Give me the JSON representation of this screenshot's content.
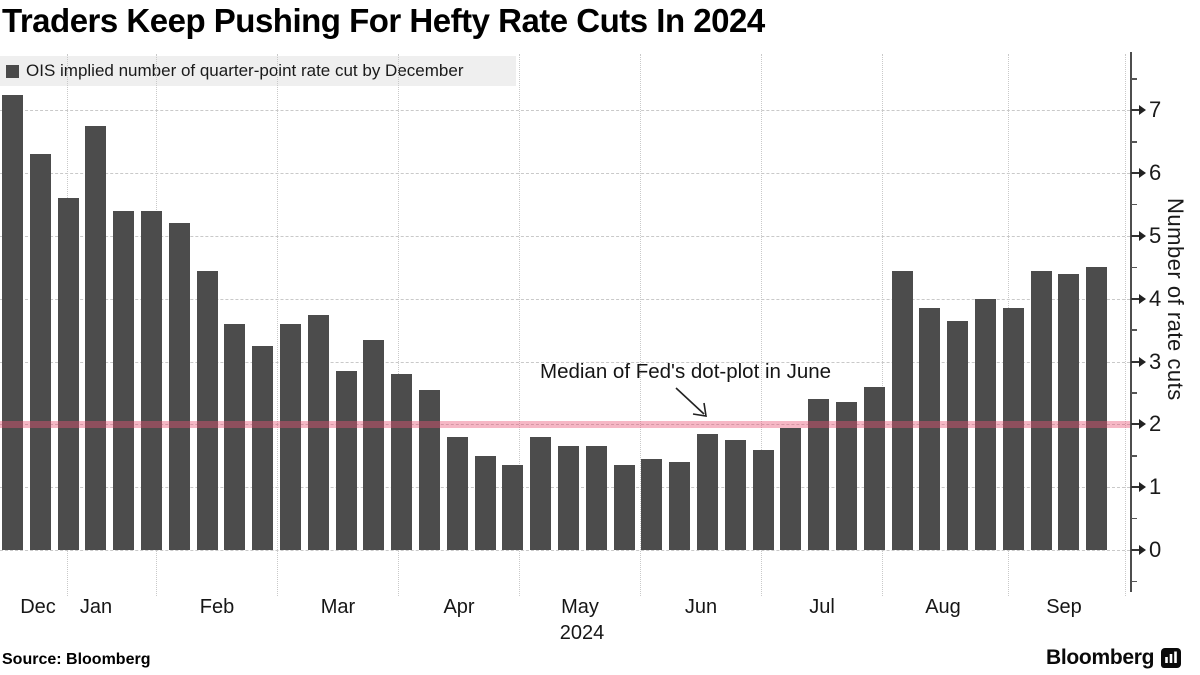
{
  "chart_data": {
    "type": "bar",
    "title": "Traders Keep Pushing For Hefty Rate Cuts In 2024",
    "legend_label": "OIS implied number of quarter-point rate cut by December",
    "ylabel": "Number of rate cuts",
    "year": "2024",
    "categories": [
      "Dec",
      "Jan",
      "Feb",
      "Mar",
      "Apr",
      "May",
      "Jun",
      "Jul",
      "Aug",
      "Sep"
    ],
    "yticks": [
      0,
      1,
      2,
      3,
      4,
      5,
      6,
      7
    ],
    "ylim": [
      -0.6,
      7.9
    ],
    "grid": "dashed horizontal and dotted vertical month gridlines",
    "legend_position": "top-left",
    "values": [
      7.25,
      6.3,
      5.6,
      6.75,
      5.4,
      5.4,
      5.2,
      4.45,
      3.6,
      3.25,
      3.6,
      3.75,
      2.85,
      3.35,
      2.8,
      2.55,
      1.8,
      1.5,
      1.35,
      1.8,
      1.65,
      1.65,
      1.35,
      1.45,
      1.4,
      1.85,
      1.75,
      1.6,
      1.95,
      2.4,
      2.35,
      2.6,
      4.45,
      3.85,
      3.65,
      4.0,
      3.85,
      4.45,
      4.4,
      4.5
    ],
    "bar_color": "#4c4c4c",
    "reference_line": {
      "value": 2,
      "label": "Median of Fed's dot-plot in June",
      "color": "#ea5474"
    }
  },
  "footer": {
    "source": "Source: Bloomberg",
    "logo_text": "Bloomberg"
  }
}
